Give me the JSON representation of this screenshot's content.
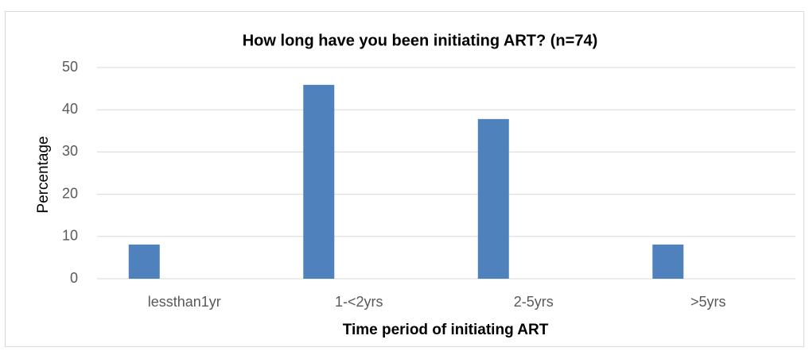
{
  "chart_data": {
    "type": "bar",
    "title": "How long have you been initiating ART? (n=74)",
    "x_label": "Time period of initiating ART",
    "y_label": "Percentage",
    "categories": [
      "lessthan1yr",
      "1-<2yrs",
      "2-5yrs",
      ">5yrs"
    ],
    "values": [
      8.1,
      45.9,
      37.8,
      8.1
    ],
    "color": "#4f81bd",
    "ylim": [
      0,
      50
    ],
    "yticks": [
      0,
      10,
      20,
      30,
      40,
      50
    ],
    "grid": true
  }
}
